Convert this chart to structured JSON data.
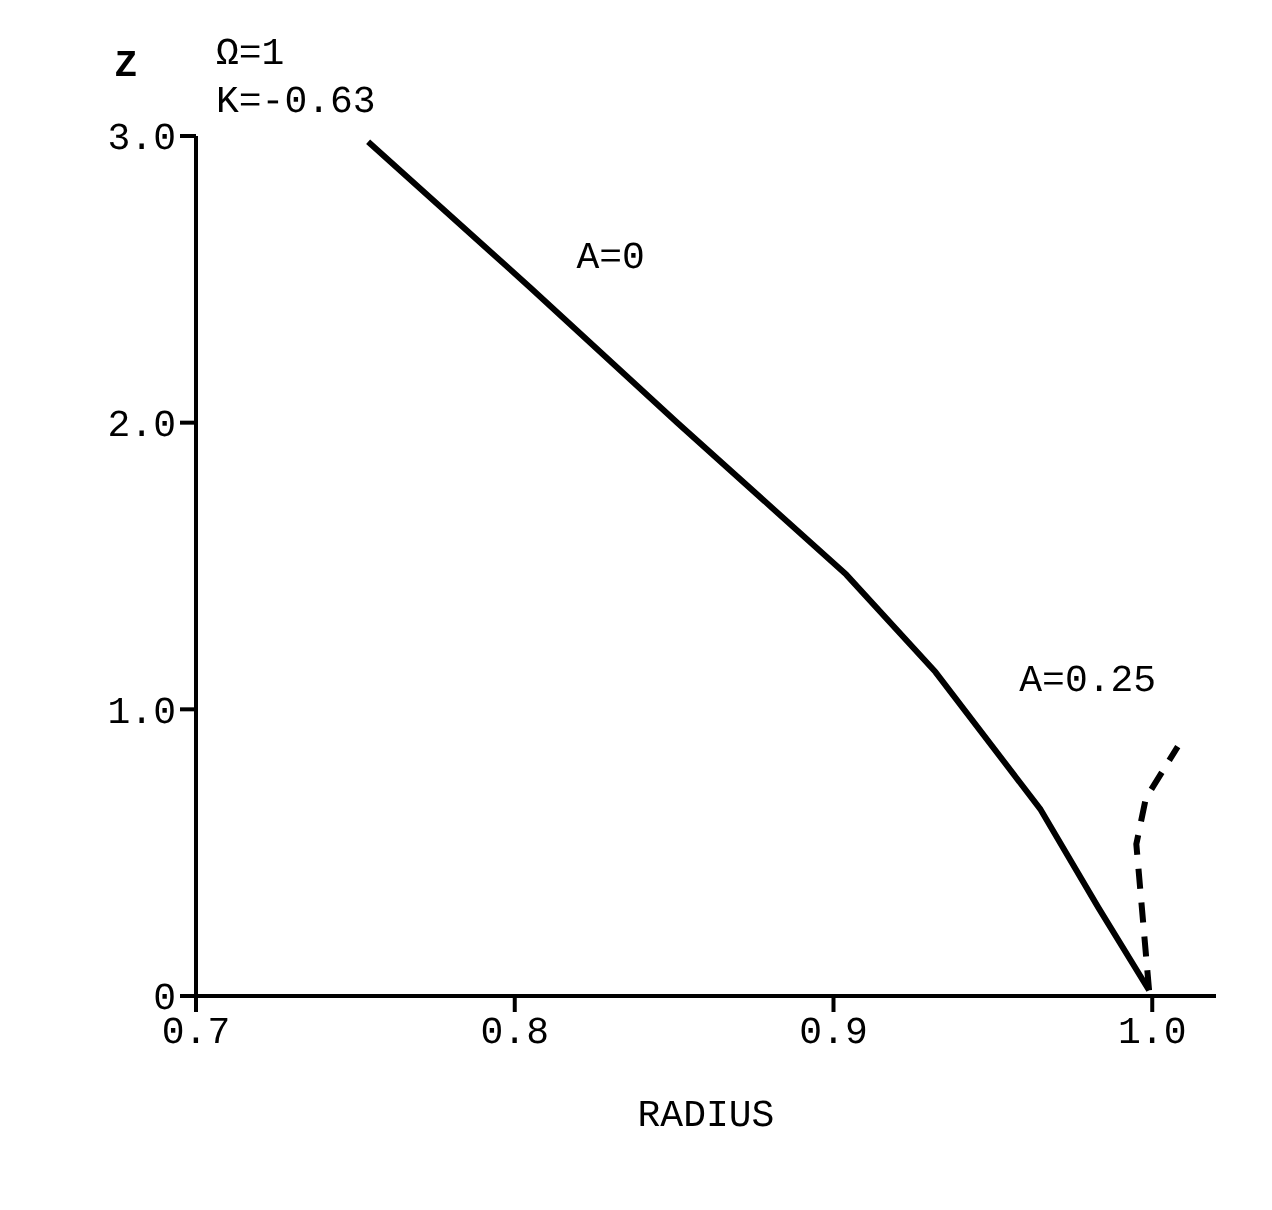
{
  "chart_data": {
    "type": "line",
    "xlabel": "RADIUS",
    "ylabel": "Z",
    "annotations": [
      "Ω=1",
      "K=-0.63"
    ],
    "series": [
      {
        "name": "A=0",
        "color": "#000000",
        "line_style": "solid",
        "x": [
          0.754,
          0.805,
          0.851,
          0.904,
          0.932,
          0.965,
          0.983,
          0.999
        ],
        "values": [
          2.98,
          2.47,
          2.0,
          1.47,
          1.13,
          0.65,
          0.31,
          0.02
        ]
      },
      {
        "name": "A=0.25",
        "color": "#000000",
        "line_style": "dashed",
        "x": [
          0.999,
          0.995,
          0.998,
          1.008
        ],
        "values": [
          0.02,
          0.53,
          0.69,
          0.87
        ]
      }
    ],
    "xlim": [
      0.7,
      1.02
    ],
    "xticks": [
      0.7,
      0.8,
      0.9,
      {
        "value": 1,
        "label": "1.0"
      }
    ],
    "ylim": [
      0,
      3
    ],
    "yticks": [
      0,
      {
        "value": 1,
        "label": "1.0"
      },
      {
        "value": 2,
        "label": "2.0"
      },
      {
        "value": 3,
        "label": "3.0"
      }
    ],
    "grid": false,
    "legend": false,
    "marker": "none"
  }
}
